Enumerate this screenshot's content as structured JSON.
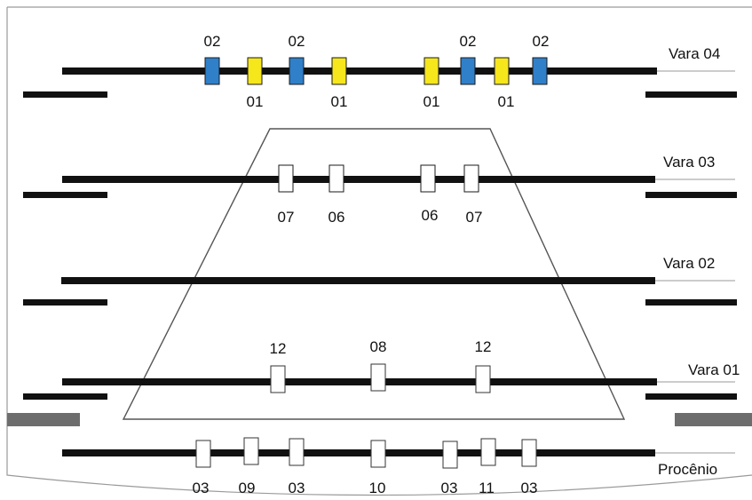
{
  "colors": {
    "bar": "#111111",
    "blue": "#2f80c9",
    "yellow": "#f6e61c",
    "white": "#ffffff",
    "outline": "#555555",
    "gray_wing": "#6d6d6d"
  },
  "battens": [
    {
      "name": "Vara 04",
      "lights": [
        {
          "code": "02",
          "color": "blue"
        },
        {
          "code": "01",
          "color": "yellow"
        },
        {
          "code": "02",
          "color": "blue"
        },
        {
          "code": "01",
          "color": "yellow"
        },
        {
          "code": "01",
          "color": "yellow"
        },
        {
          "code": "02",
          "color": "blue"
        },
        {
          "code": "01",
          "color": "yellow"
        },
        {
          "code": "02",
          "color": "blue"
        }
      ]
    },
    {
      "name": "Vara 03",
      "lights": [
        {
          "code": "07",
          "color": "yellow"
        },
        {
          "code": "06",
          "color": "blue"
        },
        {
          "code": "06",
          "color": "blue"
        },
        {
          "code": "07",
          "color": "yellow"
        }
      ]
    },
    {
      "name": "Vara 02",
      "lights": []
    },
    {
      "name": "Vara 01",
      "lights": [
        {
          "code": "12",
          "color": "white"
        },
        {
          "code": "08",
          "color": "white"
        },
        {
          "code": "12",
          "color": "white"
        }
      ]
    },
    {
      "name": "Procênio",
      "lights": [
        {
          "code": "03",
          "color": "white"
        },
        {
          "code": "09",
          "color": "white"
        },
        {
          "code": "03",
          "color": "white"
        },
        {
          "code": "10",
          "color": "white"
        },
        {
          "code": "03",
          "color": "white"
        },
        {
          "code": "11",
          "color": "white"
        },
        {
          "code": "03",
          "color": "white"
        }
      ]
    }
  ]
}
